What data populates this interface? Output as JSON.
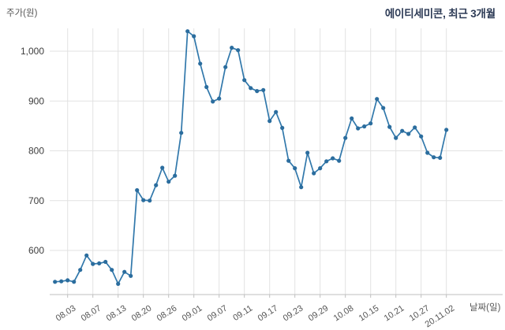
{
  "title": "에이티세미콘, 최근 3개월",
  "axes": {
    "y_title": "주가(원)",
    "x_title": "날짜(일)"
  },
  "chart_data": {
    "type": "line",
    "title": "에이티세미콘, 최근 3개월",
    "ylabel": "주가(원)",
    "xlabel": "날짜(일)",
    "series_name": "주가",
    "x": [
      "07.30",
      "07.31",
      "08.03",
      "08.04",
      "08.05",
      "08.06",
      "08.07",
      "08.10",
      "08.11",
      "08.12",
      "08.13",
      "08.14",
      "08.18",
      "08.19",
      "08.20",
      "08.21",
      "08.24",
      "08.25",
      "08.26",
      "08.27",
      "08.28",
      "08.31",
      "09.01",
      "09.02",
      "09.03",
      "09.04",
      "09.07",
      "09.08",
      "09.09",
      "09.10",
      "09.11",
      "09.14",
      "09.15",
      "09.16",
      "09.17",
      "09.18",
      "09.21",
      "09.22",
      "09.23",
      "09.24",
      "09.25",
      "09.28",
      "09.29",
      "10.05",
      "10.06",
      "10.07",
      "10.08",
      "10.12",
      "10.13",
      "10.14",
      "10.15",
      "10.16",
      "10.19",
      "10.20",
      "10.21",
      "10.22",
      "10.23",
      "10.26",
      "10.27",
      "10.28",
      "10.29",
      "10.30",
      "11.02"
    ],
    "values": [
      537,
      538,
      540,
      537,
      561,
      590,
      573,
      574,
      577,
      561,
      533,
      557,
      549,
      721,
      701,
      700,
      731,
      766,
      738,
      750,
      836,
      1040,
      1030,
      975,
      928,
      899,
      905,
      968,
      1007,
      1002,
      942,
      926,
      920,
      922,
      860,
      878,
      846,
      780,
      765,
      727,
      796,
      755,
      765,
      779,
      785,
      780,
      826,
      865,
      845,
      849,
      855,
      904,
      886,
      848,
      826,
      840,
      834,
      847,
      829,
      796,
      787,
      786,
      842
    ],
    "x_tick_labels": [
      "08.03",
      "08.07",
      "08.13",
      "08.20",
      "08.26",
      "09.01",
      "09.07",
      "09.11",
      "09.17",
      "09.23",
      "09.29",
      "10.08",
      "10.15",
      "10.21",
      "10.27",
      "20.11.02"
    ],
    "x_tick_indices": [
      2,
      6,
      10,
      14,
      18,
      22,
      26,
      30,
      34,
      38,
      42,
      46,
      50,
      54,
      58,
      62
    ],
    "y_ticks": [
      1000,
      900,
      800,
      700,
      600
    ],
    "y_tick_labels": [
      "1,000",
      "900",
      "800",
      "700",
      "600"
    ],
    "ylim": [
      512,
      1060
    ],
    "grid": true,
    "legend": false,
    "colors": {
      "line": "#3178ab",
      "point": "#2b6d9e",
      "grid": "#e2e2e2",
      "axis_line": "#bfbfbf",
      "y_tick_label": "#3d3d3d",
      "x_tick_label": "#555555",
      "title": "#2c3a55",
      "background": "#ffffff"
    }
  }
}
